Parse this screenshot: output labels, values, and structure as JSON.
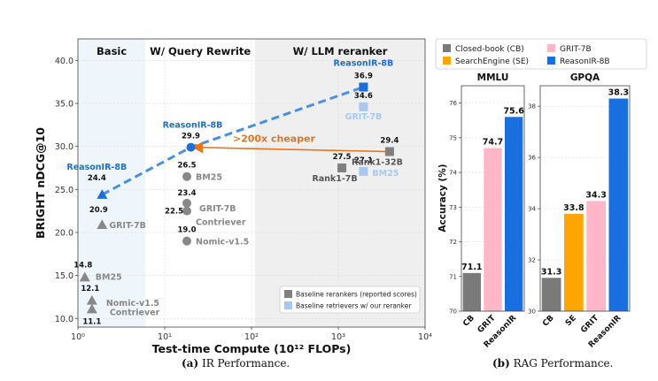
{
  "captions": {
    "left_tag": "(a)",
    "left_text": "IR Performance.",
    "right_tag": "(b)",
    "right_text": "RAG Performance."
  },
  "chart_data": [
    {
      "type": "scatter",
      "xlabel": "Test-time Compute (10¹² FLOPs)",
      "ylabel": "BRIGHT nDCG@10",
      "xscale": "log",
      "xlim": [
        1,
        10000
      ],
      "ylim": [
        9,
        42.5
      ],
      "xticks": [
        {
          "value": 1,
          "label": "10⁰"
        },
        {
          "value": 10,
          "label": "10¹"
        },
        {
          "value": 100,
          "label": "10²"
        },
        {
          "value": 1000,
          "label": "10³"
        },
        {
          "value": 10000,
          "label": "10⁴"
        }
      ],
      "yticks": [
        {
          "value": 10,
          "label": "10.0"
        },
        {
          "value": 15,
          "label": "15.0"
        },
        {
          "value": 20,
          "label": "20.0"
        },
        {
          "value": 25,
          "label": "25.0"
        },
        {
          "value": 30,
          "label": "30.0"
        },
        {
          "value": 35,
          "label": "35.0"
        },
        {
          "value": 40,
          "label": "40.0"
        }
      ],
      "grid": true,
      "regions": [
        {
          "label": "Basic",
          "x_from": 1,
          "x_to": 6,
          "color": "#eef6fc"
        },
        {
          "label": "W/ Query Rewrite",
          "x_from": 6,
          "x_to": 110,
          "color": "#ffffff"
        },
        {
          "label": "W/ LLM reranker",
          "x_from": 110,
          "x_to": 10000,
          "color": "#efefef"
        }
      ],
      "points": [
        {
          "name": "ReasonIR-8B",
          "x": 1.9,
          "y": 24.4,
          "value_label": "24.4",
          "marker": "triangle",
          "color": "#1a6fd8",
          "text_color": "#1a6fd8"
        },
        {
          "name": "GRIT-7B",
          "x": 1.9,
          "y": 20.9,
          "value_label": "20.9",
          "marker": "triangle",
          "color": "#888888",
          "text_color": "#888888"
        },
        {
          "name": "BM25",
          "x": 1.2,
          "y": 14.8,
          "value_label": "14.8",
          "marker": "triangle",
          "color": "#888888",
          "text_color": "#888888"
        },
        {
          "name": "Nomic-v1.5",
          "x": 1.45,
          "y": 12.1,
          "value_label": "12.1",
          "marker": "triangle",
          "color": "#888888",
          "text_color": "#888888"
        },
        {
          "name": "Contriever",
          "x": 1.45,
          "y": 11.1,
          "value_label": "11.1",
          "marker": "triangle",
          "color": "#888888",
          "text_color": "#888888"
        },
        {
          "name": "ReasonIR-8B",
          "x": 20,
          "y": 29.9,
          "value_label": "29.9",
          "marker": "circle",
          "color": "#1a6fd8",
          "text_color": "#1a6fd8"
        },
        {
          "name": "BM25",
          "x": 18,
          "y": 26.5,
          "value_label": "26.5",
          "marker": "circle",
          "color": "#888888",
          "text_color": "#888888"
        },
        {
          "name": "GRIT-7B",
          "x": 18,
          "y": 23.4,
          "value_label": "23.4",
          "marker": "circle",
          "color": "#888888",
          "text_color": "#888888"
        },
        {
          "name": "Contriever",
          "x": 18,
          "y": 22.5,
          "value_label": "22.5",
          "marker": "circle",
          "color": "#888888",
          "text_color": "#888888"
        },
        {
          "name": "Nomic-v1.5",
          "x": 18,
          "y": 19.0,
          "value_label": "19.0",
          "marker": "circle",
          "color": "#888888",
          "text_color": "#888888"
        },
        {
          "name": "ReasonIR-8B",
          "x": 1950,
          "y": 36.9,
          "value_label": "36.9",
          "marker": "square",
          "color": "#1a6fd8",
          "text_color": "#1a6fd8"
        },
        {
          "name": "GRIT-7B",
          "x": 1950,
          "y": 34.6,
          "value_label": "34.6",
          "marker": "square",
          "color": "#a8c8f0",
          "text_color": "#a8c8f0"
        },
        {
          "name": "BM25",
          "x": 1950,
          "y": 27.1,
          "value_label": "27.1",
          "marker": "square",
          "color": "#a8c8f0",
          "text_color": "#a8c8f0"
        },
        {
          "name": "Rank1-7B",
          "x": 1100,
          "y": 27.5,
          "value_label": "27.5",
          "marker": "square",
          "color": "#808080",
          "text_color": "#555555"
        },
        {
          "name": "Rank1-32B",
          "x": 3900,
          "y": 29.4,
          "value_label": "29.4",
          "marker": "square",
          "color": "#808080",
          "text_color": "#555555"
        }
      ],
      "trend_line": [
        {
          "x": 1.9,
          "y": 24.4
        },
        {
          "x": 20,
          "y": 29.9
        },
        {
          "x": 1950,
          "y": 36.9
        }
      ],
      "annotation": {
        "text": ">200x cheaper",
        "from": {
          "x": 3500,
          "y": 29.4
        },
        "to": {
          "x": 22,
          "y": 29.9
        },
        "color": "#e8751a"
      },
      "legend": {
        "position": "bottom-right",
        "entries": [
          {
            "label": "Baseline rerankers (reported scores)",
            "color": "#808080"
          },
          {
            "label": "Baseline retrievers w/ our reranker",
            "color": "#a8c8f0"
          }
        ]
      }
    },
    {
      "type": "bar",
      "ylabel": "Accuracy (%)",
      "legend": {
        "position": "top",
        "entries": [
          {
            "name": "Closed-book (CB)",
            "color": "#7a7a7a"
          },
          {
            "name": "GRIT-7B",
            "color": "#ffb6c6"
          },
          {
            "name": "SearchEngine (SE)",
            "color": "#ffa500"
          },
          {
            "name": "ReasonIR-8B",
            "color": "#1a6fe0"
          }
        ]
      },
      "panels": [
        {
          "title": "MMLU",
          "ylim": [
            70,
            76.5
          ],
          "yticks": [
            {
              "value": 70,
              "label": "70"
            },
            {
              "value": 71,
              "label": "71"
            },
            {
              "value": 72,
              "label": "72"
            },
            {
              "value": 73,
              "label": "73"
            },
            {
              "value": 74,
              "label": "74"
            },
            {
              "value": 75,
              "label": "75"
            },
            {
              "value": 76,
              "label": "76"
            }
          ],
          "categories": [
            "CB",
            "GRIT",
            "ReasonIR"
          ],
          "values": [
            71.1,
            74.7,
            75.6
          ],
          "value_labels": [
            "71.1",
            "74.7",
            "75.6"
          ],
          "colors": [
            "#7a7a7a",
            "#ffb6c6",
            "#1a6fe0"
          ]
        },
        {
          "title": "GPQA",
          "ylim": [
            30,
            38.8
          ],
          "yticks": [
            {
              "value": 30,
              "label": "30"
            },
            {
              "value": 32,
              "label": "32"
            },
            {
              "value": 34,
              "label": "34"
            },
            {
              "value": 36,
              "label": "36"
            },
            {
              "value": 38,
              "label": "38"
            }
          ],
          "categories": [
            "CB",
            "SE",
            "GRIT",
            "ReasonIR"
          ],
          "values": [
            31.3,
            33.8,
            34.3,
            38.3
          ],
          "value_labels": [
            "31.3",
            "33.8",
            "34.3",
            "38.3"
          ],
          "colors": [
            "#7a7a7a",
            "#ffa500",
            "#ffb6c6",
            "#1a6fe0"
          ]
        }
      ]
    }
  ]
}
